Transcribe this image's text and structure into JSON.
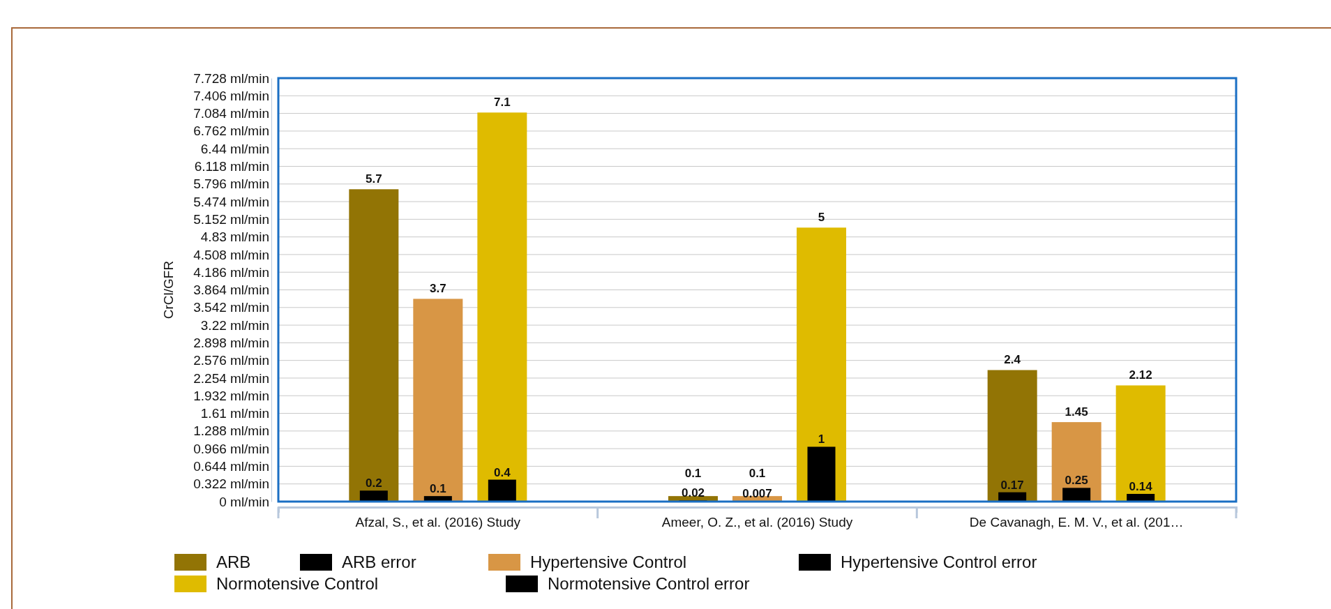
{
  "chart_data": {
    "type": "bar",
    "ylabel": "CrCl/GFR",
    "categories": [
      "Afzal, S., et al. (2016) Study",
      "Ameer, O. Z., et al. (2016) Study",
      "De Cavanagh, E. M. V., et al. (201…"
    ],
    "series": [
      {
        "name": "ARB",
        "color": "#927405",
        "values": [
          5.7,
          0.1,
          2.4
        ]
      },
      {
        "name": "ARB error",
        "color": "#000000",
        "values": [
          0.2,
          0.02,
          0.17
        ]
      },
      {
        "name": "Hypertensive Control",
        "color": "#d89645",
        "values": [
          3.7,
          0.1,
          1.45
        ]
      },
      {
        "name": "Hypertensive Control error",
        "color": "#000000",
        "values": [
          0.1,
          0.007,
          0.25
        ]
      },
      {
        "name": "Normotensive Control",
        "color": "#dfbb00",
        "values": [
          7.1,
          5,
          2.12
        ]
      },
      {
        "name": "Normotensive Control error",
        "color": "#000000",
        "values": [
          0.4,
          1,
          0.14
        ]
      }
    ],
    "ylim": [
      0,
      7.728
    ],
    "yticks": [
      {
        "value": 0,
        "label": "0 ml/min"
      },
      {
        "value": 0.322,
        "label": "0.322 ml/min"
      },
      {
        "value": 0.644,
        "label": "0.644 ml/min"
      },
      {
        "value": 0.966,
        "label": "0.966 ml/min"
      },
      {
        "value": 1.288,
        "label": "1.288 ml/min"
      },
      {
        "value": 1.61,
        "label": "1.61 ml/min"
      },
      {
        "value": 1.932,
        "label": "1.932 ml/min"
      },
      {
        "value": 2.254,
        "label": "2.254 ml/min"
      },
      {
        "value": 2.576,
        "label": "2.576 ml/min"
      },
      {
        "value": 2.898,
        "label": "2.898 ml/min"
      },
      {
        "value": 3.22,
        "label": "3.22 ml/min"
      },
      {
        "value": 3.542,
        "label": "3.542 ml/min"
      },
      {
        "value": 3.864,
        "label": "3.864 ml/min"
      },
      {
        "value": 4.186,
        "label": "4.186 ml/min"
      },
      {
        "value": 4.508,
        "label": "4.508 ml/min"
      },
      {
        "value": 4.83,
        "label": "4.83 ml/min"
      },
      {
        "value": 5.152,
        "label": "5.152 ml/min"
      },
      {
        "value": 5.474,
        "label": "5.474 ml/min"
      },
      {
        "value": 5.796,
        "label": "5.796 ml/min"
      },
      {
        "value": 6.118,
        "label": "6.118 ml/min"
      },
      {
        "value": 6.44,
        "label": "6.44 ml/min"
      },
      {
        "value": 6.762,
        "label": "6.762 ml/min"
      },
      {
        "value": 7.084,
        "label": "7.084 ml/min"
      },
      {
        "value": 7.406,
        "label": "7.406 ml/min"
      },
      {
        "value": 7.728,
        "label": "7.728 ml/min"
      }
    ],
    "grid": "y",
    "data_labels": true,
    "legend": "bottom"
  }
}
